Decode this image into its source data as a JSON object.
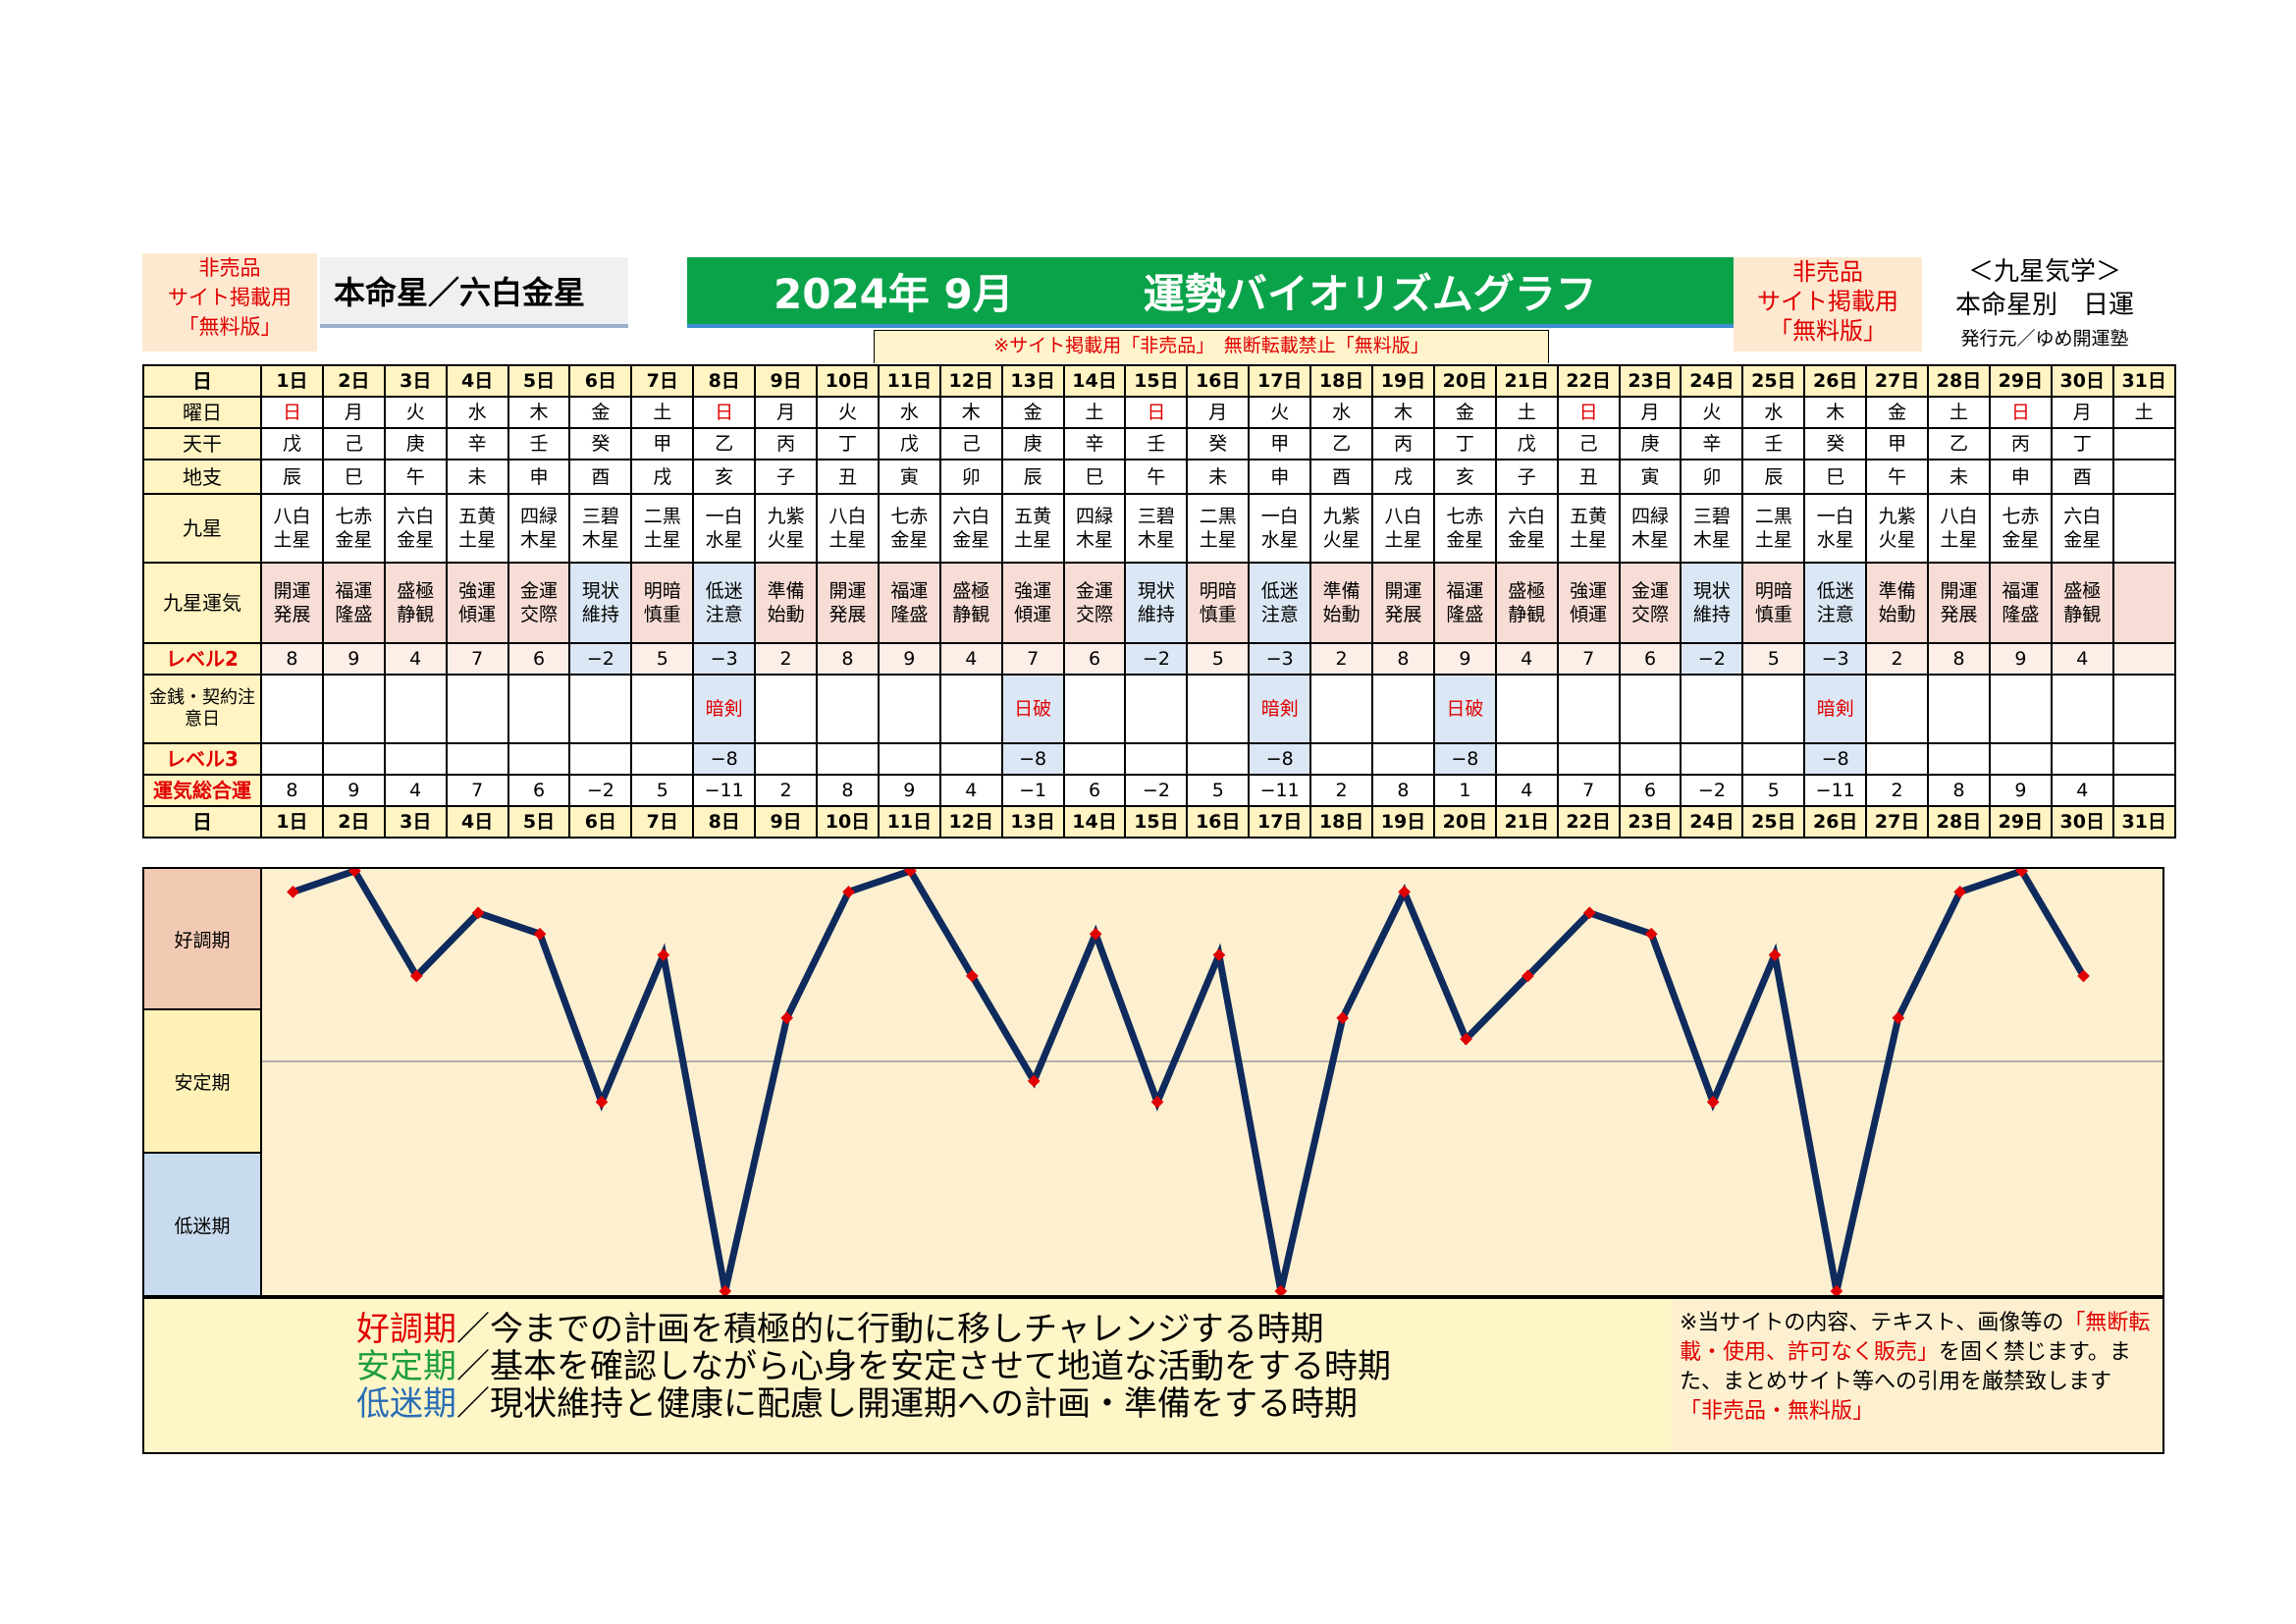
{
  "header": {
    "left_notice": [
      "非売品",
      "サイト掲載用",
      "「無料版」"
    ],
    "honmei": "本命星／六白金星",
    "title_year_month": "2024年 9月",
    "title_main": "運勢バイオリズムグラフ",
    "sub_notice": "※サイト掲載用「非売品」　無断転載禁止「無料版」",
    "right_notice": [
      "非売品",
      "サイト掲載用",
      "「無料版」"
    ],
    "kyusei_title": "＜九星気学＞",
    "kyusei_sub": "本命星別　日運",
    "publisher": "発行元／ゆめ開運塾"
  },
  "row_labels": {
    "day": "日",
    "weekday": "曜日",
    "tenkan": "天干",
    "chishi": "地支",
    "kyusei": "九星",
    "kyusei_unki": "九星運気",
    "level2": "レベル2",
    "kinsen": "金銭・契約注意日",
    "level3": "レベル3",
    "sougou": "運気総合運"
  },
  "days": [
    "1日",
    "2日",
    "3日",
    "4日",
    "5日",
    "6日",
    "7日",
    "8日",
    "9日",
    "10日",
    "11日",
    "12日",
    "13日",
    "14日",
    "15日",
    "16日",
    "17日",
    "18日",
    "19日",
    "20日",
    "21日",
    "22日",
    "23日",
    "24日",
    "25日",
    "26日",
    "27日",
    "28日",
    "29日",
    "30日",
    "31日"
  ],
  "weekdays": [
    "日",
    "月",
    "火",
    "水",
    "木",
    "金",
    "土",
    "日",
    "月",
    "火",
    "水",
    "木",
    "金",
    "土",
    "日",
    "月",
    "火",
    "水",
    "木",
    "金",
    "土",
    "日",
    "月",
    "火",
    "水",
    "木",
    "金",
    "土",
    "日",
    "月",
    "土"
  ],
  "tenkan": [
    "戊",
    "己",
    "庚",
    "辛",
    "壬",
    "癸",
    "甲",
    "乙",
    "丙",
    "丁",
    "戊",
    "己",
    "庚",
    "辛",
    "壬",
    "癸",
    "甲",
    "乙",
    "丙",
    "丁",
    "戊",
    "己",
    "庚",
    "辛",
    "壬",
    "癸",
    "甲",
    "乙",
    "丙",
    "丁",
    ""
  ],
  "chishi": [
    "辰",
    "巳",
    "午",
    "未",
    "申",
    "酉",
    "戌",
    "亥",
    "子",
    "丑",
    "寅",
    "卯",
    "辰",
    "巳",
    "午",
    "未",
    "申",
    "酉",
    "戌",
    "亥",
    "子",
    "丑",
    "寅",
    "卯",
    "辰",
    "巳",
    "午",
    "未",
    "申",
    "酉",
    ""
  ],
  "kyusei": [
    [
      "八白",
      "土星"
    ],
    [
      "七赤",
      "金星"
    ],
    [
      "六白",
      "金星"
    ],
    [
      "五黄",
      "土星"
    ],
    [
      "四緑",
      "木星"
    ],
    [
      "三碧",
      "木星"
    ],
    [
      "二黒",
      "土星"
    ],
    [
      "一白",
      "水星"
    ],
    [
      "九紫",
      "火星"
    ],
    [
      "八白",
      "土星"
    ],
    [
      "七赤",
      "金星"
    ],
    [
      "六白",
      "金星"
    ],
    [
      "五黄",
      "土星"
    ],
    [
      "四緑",
      "木星"
    ],
    [
      "三碧",
      "木星"
    ],
    [
      "二黒",
      "土星"
    ],
    [
      "一白",
      "水星"
    ],
    [
      "九紫",
      "火星"
    ],
    [
      "八白",
      "土星"
    ],
    [
      "七赤",
      "金星"
    ],
    [
      "六白",
      "金星"
    ],
    [
      "五黄",
      "土星"
    ],
    [
      "四緑",
      "木星"
    ],
    [
      "三碧",
      "木星"
    ],
    [
      "二黒",
      "土星"
    ],
    [
      "一白",
      "水星"
    ],
    [
      "九紫",
      "火星"
    ],
    [
      "八白",
      "土星"
    ],
    [
      "七赤",
      "金星"
    ],
    [
      "六白",
      "金星"
    ],
    [
      "",
      ""
    ]
  ],
  "unki": [
    [
      "開運",
      "発展"
    ],
    [
      "福運",
      "隆盛"
    ],
    [
      "盛極",
      "静観"
    ],
    [
      "強運",
      "傾運"
    ],
    [
      "金運",
      "交際"
    ],
    [
      "現状",
      "維持"
    ],
    [
      "明暗",
      "慎重"
    ],
    [
      "低迷",
      "注意"
    ],
    [
      "準備",
      "始動"
    ],
    [
      "開運",
      "発展"
    ],
    [
      "福運",
      "隆盛"
    ],
    [
      "盛極",
      "静観"
    ],
    [
      "強運",
      "傾運"
    ],
    [
      "金運",
      "交際"
    ],
    [
      "現状",
      "維持"
    ],
    [
      "明暗",
      "慎重"
    ],
    [
      "低迷",
      "注意"
    ],
    [
      "準備",
      "始動"
    ],
    [
      "開運",
      "発展"
    ],
    [
      "福運",
      "隆盛"
    ],
    [
      "盛極",
      "静観"
    ],
    [
      "強運",
      "傾運"
    ],
    [
      "金運",
      "交際"
    ],
    [
      "現状",
      "維持"
    ],
    [
      "明暗",
      "慎重"
    ],
    [
      "低迷",
      "注意"
    ],
    [
      "準備",
      "始動"
    ],
    [
      "開運",
      "発展"
    ],
    [
      "福運",
      "隆盛"
    ],
    [
      "盛極",
      "静観"
    ],
    [
      "",
      ""
    ]
  ],
  "level2": [
    "8",
    "9",
    "4",
    "7",
    "6",
    "−2",
    "5",
    "−3",
    "2",
    "8",
    "9",
    "4",
    "7",
    "6",
    "−2",
    "5",
    "−3",
    "2",
    "8",
    "9",
    "4",
    "7",
    "6",
    "−2",
    "5",
    "−3",
    "2",
    "8",
    "9",
    "4",
    ""
  ],
  "kinsen": [
    "",
    "",
    "",
    "",
    "",
    "",
    "",
    "暗剣",
    "",
    "",
    "",
    "",
    "日破",
    "",
    "",
    "",
    "暗剣",
    "",
    "",
    "日破",
    "",
    "",
    "",
    "",
    "",
    "暗剣",
    "",
    "",
    "",
    "",
    ""
  ],
  "level3": [
    "",
    "",
    "",
    "",
    "",
    "",
    "",
    "−8",
    "",
    "",
    "",
    "",
    "−8",
    "",
    "",
    "",
    "−8",
    "",
    "",
    "−8",
    "",
    "",
    "",
    "",
    "",
    "−8",
    "",
    "",
    "",
    "",
    ""
  ],
  "sougou": [
    "8",
    "9",
    "4",
    "7",
    "6",
    "−2",
    "5",
    "−11",
    "2",
    "8",
    "9",
    "4",
    "−1",
    "6",
    "−2",
    "5",
    "−11",
    "2",
    "8",
    "1",
    "4",
    "7",
    "6",
    "−2",
    "5",
    "−11",
    "2",
    "8",
    "9",
    "4",
    ""
  ],
  "chart_data": {
    "type": "line",
    "x": [
      1,
      2,
      3,
      4,
      5,
      6,
      7,
      8,
      9,
      10,
      11,
      12,
      13,
      14,
      15,
      16,
      17,
      18,
      19,
      20,
      21,
      22,
      23,
      24,
      25,
      26,
      27,
      28,
      29,
      30
    ],
    "values": [
      8,
      9,
      4,
      7,
      6,
      -2,
      5,
      -11,
      2,
      8,
      9,
      4,
      -1,
      6,
      -2,
      5,
      -11,
      2,
      8,
      1,
      4,
      7,
      6,
      -2,
      5,
      -11,
      2,
      8,
      9,
      4
    ],
    "ylim": [
      -11,
      9
    ],
    "zones": [
      "好調期",
      "安定期",
      "低迷期"
    ],
    "line_color": "#0f2a5c",
    "marker_color": "#e00000"
  },
  "legend": {
    "l1_key": "好調期",
    "l1_text": "／今までの計画を積極的に行動に移しチャレンジする時期",
    "l2_key": "安定期",
    "l2_text": "／基本を確認しながら心身を安定させて地道な活動をする時期",
    "l3_key": "低迷期",
    "l3_text": "／現状維持と健康に配慮し開運期への計画・準備をする時期"
  },
  "copyright": {
    "p1": "※当サイトの内容、テキスト、画像等の",
    "p2": "「無断転載・使用、許可なく販売」",
    "p3": "を固く禁じます。また、まとめサイト等への引用を厳禁致します",
    "p4": "「非売品・無料版」"
  }
}
